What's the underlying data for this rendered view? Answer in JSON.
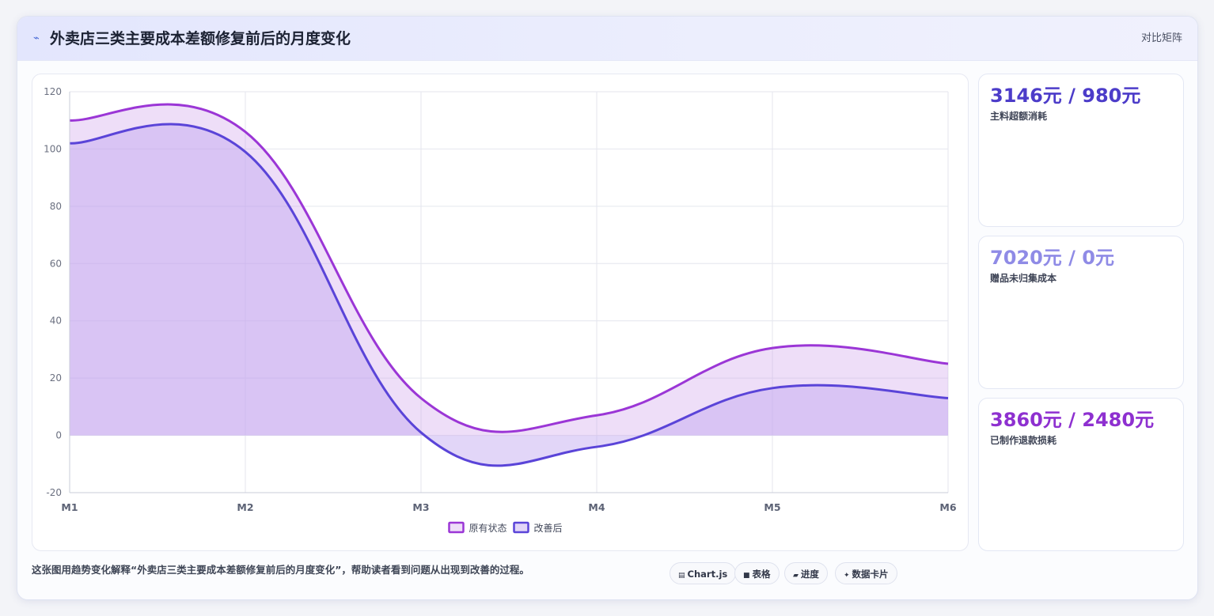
{
  "header": {
    "icon": "trend-line-icon",
    "title": "外卖店三类主要成本差额修复前后的月度变化",
    "tag": "对比矩阵"
  },
  "stats": [
    {
      "value": "3146元 / 980元",
      "label": "主料超额消耗",
      "color": "#4c3cc9"
    },
    {
      "value": "7020元 / 0元",
      "label": "赠品未归集成本",
      "color": "#8f8be6"
    },
    {
      "value": "3860元 / 2480元",
      "label": "已制作退款损耗",
      "color": "#8e30d0"
    }
  ],
  "footer": {
    "text": "这张图用趋势变化解释“外卖店三类主要成本差额修复前后的月度变化”，帮助读者看到问题从出现到改善的过程。",
    "chips": [
      {
        "icon": "chart-icon",
        "label": "Chart.js"
      },
      {
        "icon": "table-icon",
        "label": "表格"
      },
      {
        "icon": "progress-icon",
        "label": "进度"
      },
      {
        "icon": "sparkle-icon",
        "label": "数据卡片"
      }
    ]
  },
  "chart_data": {
    "type": "area",
    "categories": [
      "M1",
      "M2",
      "M3",
      "M4",
      "M5",
      "M6"
    ],
    "ylim": [
      -20,
      120
    ],
    "yticks": [
      120,
      100,
      80,
      60,
      40,
      20,
      0,
      -20
    ],
    "grid": true,
    "legend_position": "bottom",
    "series": [
      {
        "name": "原有状态",
        "values": [
          110,
          106,
          13,
          7,
          30.5,
          25
        ],
        "color": "#9b36d6",
        "fill": "rgba(205,160,235,0.35)"
      },
      {
        "name": "改善后",
        "values": [
          102,
          99,
          1,
          -4,
          16.5,
          13
        ],
        "color": "#5a44d8",
        "fill": "rgba(190,165,240,0.45)"
      }
    ]
  }
}
